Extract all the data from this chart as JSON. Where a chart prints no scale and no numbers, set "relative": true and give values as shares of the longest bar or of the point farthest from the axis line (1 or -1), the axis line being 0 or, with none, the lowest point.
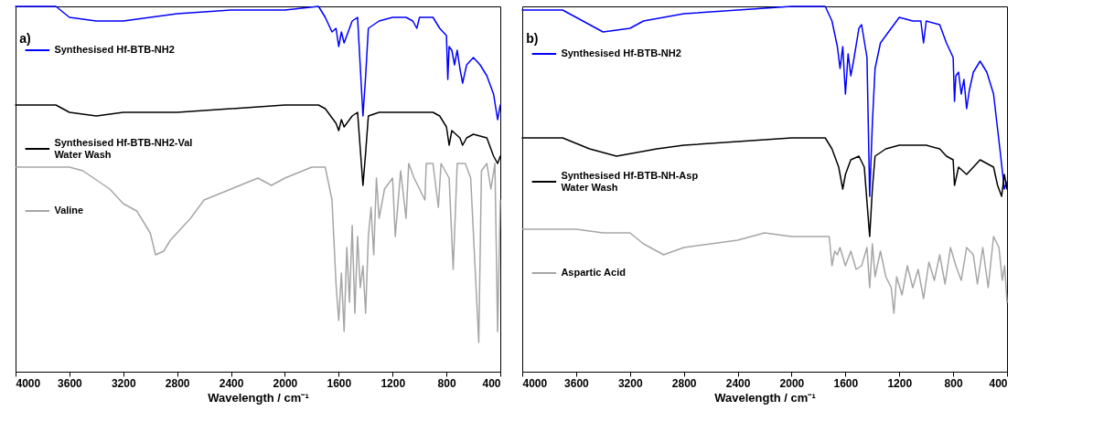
{
  "chart_data": [
    {
      "type": "line",
      "title": "a)",
      "xlabel": "Wavelength / cm⁻¹",
      "legend": "left",
      "relative": true,
      "xlim": [
        4000,
        400
      ],
      "xticks": [
        4000,
        3600,
        3200,
        2800,
        2400,
        2000,
        1600,
        1200,
        800,
        400
      ],
      "grid": false,
      "line_style": "solid",
      "marker": "none",
      "series": [
        {
          "name": "Synthesised Hf-BTB-NH2",
          "color": "#0000ff",
          "x": [
            4000,
            3700,
            3600,
            3400,
            3200,
            3000,
            2800,
            2400,
            2000,
            1750,
            1700,
            1650,
            1620,
            1600,
            1580,
            1560,
            1540,
            1500,
            1460,
            1420,
            1400,
            1380,
            1300,
            1200,
            1100,
            1050,
            1020,
            1000,
            900,
            850,
            800,
            790,
            780,
            760,
            740,
            720,
            700,
            680,
            650,
            600,
            550,
            500,
            450,
            420,
            400
          ],
          "values": [
            1.0,
            1.0,
            0.97,
            0.96,
            0.96,
            0.97,
            0.98,
            0.99,
            0.99,
            1.0,
            0.97,
            0.93,
            0.94,
            0.89,
            0.93,
            0.9,
            0.92,
            0.96,
            0.97,
            0.7,
            0.81,
            0.94,
            0.96,
            0.97,
            0.97,
            0.96,
            0.94,
            0.97,
            0.97,
            0.94,
            0.92,
            0.8,
            0.89,
            0.88,
            0.84,
            0.88,
            0.83,
            0.79,
            0.84,
            0.86,
            0.84,
            0.81,
            0.76,
            0.69,
            0.73
          ]
        },
        {
          "name": "Synthesised Hf-BTB-NH2-Val\nWater Wash",
          "color": "#000000",
          "x": [
            4000,
            3700,
            3600,
            3400,
            3200,
            2800,
            2400,
            2000,
            1750,
            1700,
            1620,
            1600,
            1580,
            1560,
            1500,
            1460,
            1420,
            1400,
            1380,
            1300,
            1200,
            1000,
            900,
            850,
            800,
            780,
            760,
            700,
            680,
            650,
            600,
            500,
            450,
            420,
            400
          ],
          "values": [
            0.73,
            0.73,
            0.71,
            0.7,
            0.71,
            0.71,
            0.72,
            0.73,
            0.73,
            0.72,
            0.68,
            0.66,
            0.69,
            0.67,
            0.7,
            0.71,
            0.51,
            0.6,
            0.7,
            0.71,
            0.71,
            0.71,
            0.71,
            0.7,
            0.67,
            0.62,
            0.66,
            0.64,
            0.62,
            0.64,
            0.65,
            0.64,
            0.59,
            0.57,
            0.59
          ]
        },
        {
          "name": "Valine",
          "color": "#a6a6a6",
          "x": [
            4000,
            3700,
            3600,
            3500,
            3300,
            3200,
            3150,
            3100,
            3000,
            2960,
            2900,
            2850,
            2700,
            2600,
            2400,
            2200,
            2100,
            2000,
            1800,
            1700,
            1650,
            1620,
            1600,
            1580,
            1560,
            1540,
            1520,
            1500,
            1480,
            1460,
            1440,
            1420,
            1400,
            1380,
            1360,
            1340,
            1320,
            1300,
            1260,
            1200,
            1180,
            1140,
            1100,
            1080,
            1040,
            960,
            950,
            900,
            860,
            840,
            780,
            750,
            720,
            660,
            620,
            560,
            540,
            500,
            470,
            440,
            420,
            400
          ],
          "values": [
            0.56,
            0.56,
            0.56,
            0.55,
            0.5,
            0.46,
            0.45,
            0.44,
            0.38,
            0.32,
            0.33,
            0.36,
            0.42,
            0.47,
            0.5,
            0.53,
            0.51,
            0.53,
            0.56,
            0.56,
            0.47,
            0.24,
            0.14,
            0.27,
            0.11,
            0.34,
            0.19,
            0.4,
            0.16,
            0.37,
            0.23,
            0.29,
            0.16,
            0.37,
            0.45,
            0.32,
            0.53,
            0.42,
            0.5,
            0.53,
            0.37,
            0.55,
            0.42,
            0.57,
            0.53,
            0.47,
            0.57,
            0.57,
            0.45,
            0.57,
            0.53,
            0.28,
            0.57,
            0.57,
            0.53,
            0.08,
            0.55,
            0.57,
            0.5,
            0.57,
            0.11,
            0.47
          ]
        }
      ]
    },
    {
      "type": "line",
      "title": "b)",
      "xlabel": "Wavelength / cm⁻¹",
      "legend": "left",
      "relative": true,
      "xlim": [
        4000,
        400
      ],
      "xticks": [
        4000,
        3600,
        3200,
        2800,
        2400,
        2000,
        1600,
        1200,
        800,
        400
      ],
      "grid": false,
      "line_style": "solid",
      "marker": "none",
      "series": [
        {
          "name": "Synthesised Hf-BTB-NH2",
          "color": "#0000ff",
          "x": [
            4000,
            3700,
            3600,
            3400,
            3200,
            3100,
            2800,
            2400,
            2000,
            1750,
            1700,
            1660,
            1640,
            1620,
            1600,
            1580,
            1560,
            1540,
            1500,
            1480,
            1440,
            1420,
            1400,
            1380,
            1340,
            1300,
            1200,
            1100,
            1040,
            1020,
            1000,
            900,
            850,
            800,
            790,
            780,
            760,
            740,
            720,
            700,
            680,
            650,
            600,
            550,
            500,
            450,
            420,
            400
          ],
          "values": [
            0.99,
            0.99,
            0.97,
            0.93,
            0.94,
            0.96,
            0.98,
            0.99,
            1.0,
            1.0,
            0.96,
            0.89,
            0.83,
            0.89,
            0.76,
            0.87,
            0.81,
            0.85,
            0.94,
            0.95,
            0.86,
            0.48,
            0.68,
            0.83,
            0.9,
            0.92,
            0.97,
            0.96,
            0.96,
            0.9,
            0.96,
            0.95,
            0.9,
            0.86,
            0.74,
            0.81,
            0.82,
            0.76,
            0.8,
            0.72,
            0.77,
            0.82,
            0.85,
            0.82,
            0.76,
            0.6,
            0.5,
            0.52
          ]
        },
        {
          "name": "Synthesised Hf-BTB-NH-Asp\nWater Wash",
          "color": "#000000",
          "x": [
            4000,
            3700,
            3500,
            3300,
            3000,
            2800,
            2400,
            2000,
            1750,
            1700,
            1650,
            1620,
            1600,
            1560,
            1500,
            1460,
            1420,
            1400,
            1380,
            1300,
            1200,
            1000,
            900,
            850,
            800,
            790,
            760,
            700,
            650,
            600,
            500,
            470,
            440,
            420,
            400
          ],
          "values": [
            0.64,
            0.64,
            0.61,
            0.59,
            0.61,
            0.62,
            0.63,
            0.64,
            0.64,
            0.61,
            0.56,
            0.5,
            0.54,
            0.58,
            0.59,
            0.56,
            0.37,
            0.5,
            0.59,
            0.61,
            0.62,
            0.62,
            0.61,
            0.59,
            0.58,
            0.51,
            0.56,
            0.54,
            0.56,
            0.58,
            0.56,
            0.51,
            0.48,
            0.54,
            0.5
          ]
        },
        {
          "name": "Aspartic Acid",
          "color": "#a6a6a6",
          "x": [
            4000,
            3800,
            3600,
            3400,
            3200,
            3100,
            3000,
            2950,
            2800,
            2600,
            2400,
            2200,
            2000,
            1800,
            1720,
            1700,
            1680,
            1660,
            1640,
            1600,
            1560,
            1520,
            1480,
            1440,
            1420,
            1400,
            1380,
            1340,
            1300,
            1260,
            1240,
            1220,
            1180,
            1140,
            1100,
            1060,
            1020,
            980,
            940,
            900,
            860,
            820,
            780,
            740,
            700,
            650,
            620,
            580,
            540,
            500,
            460,
            435,
            418,
            400
          ],
          "values": [
            0.39,
            0.39,
            0.39,
            0.38,
            0.38,
            0.35,
            0.33,
            0.32,
            0.34,
            0.35,
            0.36,
            0.38,
            0.37,
            0.37,
            0.37,
            0.29,
            0.33,
            0.32,
            0.34,
            0.29,
            0.33,
            0.28,
            0.29,
            0.34,
            0.23,
            0.35,
            0.26,
            0.33,
            0.26,
            0.23,
            0.16,
            0.26,
            0.21,
            0.29,
            0.23,
            0.28,
            0.2,
            0.3,
            0.25,
            0.32,
            0.24,
            0.34,
            0.29,
            0.25,
            0.34,
            0.32,
            0.24,
            0.34,
            0.23,
            0.37,
            0.34,
            0.25,
            0.29,
            0.19
          ]
        }
      ]
    }
  ]
}
